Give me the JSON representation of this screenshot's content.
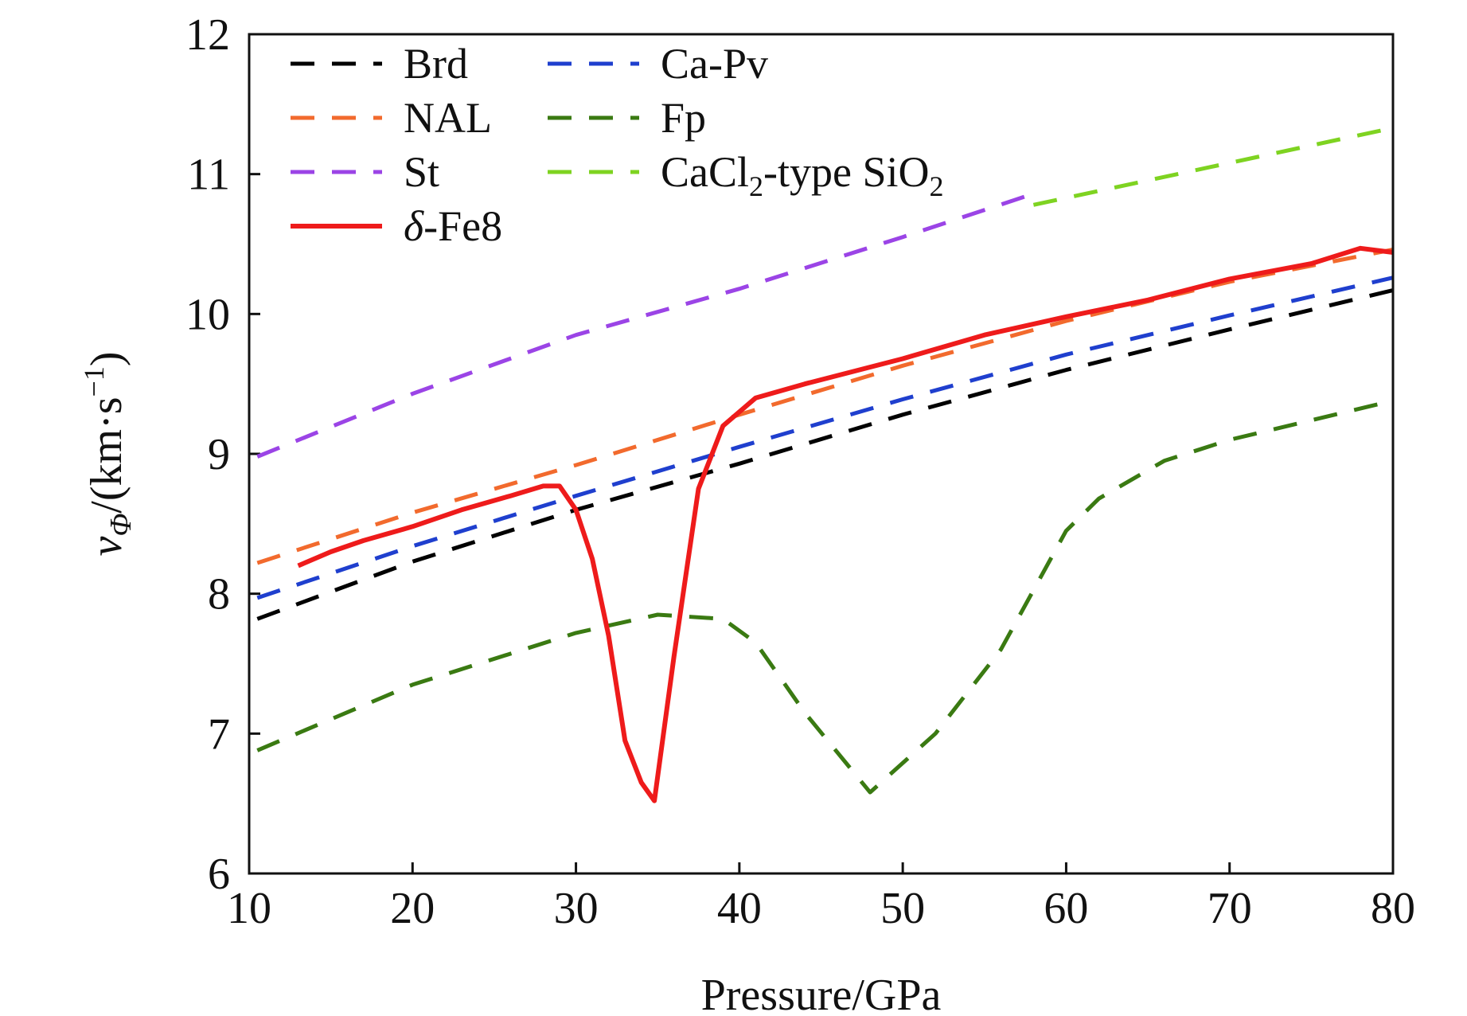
{
  "chart_data": {
    "type": "line",
    "title": "",
    "xlabel": "Pressure/GPa",
    "ylabel": {
      "symbol": "v",
      "subscript": "Φ",
      "units_prefix": "/(km·s",
      "units_exp": "−1",
      "units_suffix": ")"
    },
    "xlim": [
      10,
      80
    ],
    "ylim": [
      6,
      12
    ],
    "xticks": [
      10,
      20,
      30,
      40,
      50,
      60,
      70,
      80
    ],
    "yticks": [
      6,
      7,
      8,
      9,
      10,
      11,
      12
    ],
    "grid": false,
    "legend_position": "top-left",
    "series": [
      {
        "id": "brd",
        "name": "Brd",
        "color": "#000000",
        "dash": true,
        "x": [
          10.5,
          20,
          30,
          40,
          50,
          60,
          70,
          80
        ],
        "y": [
          7.82,
          8.23,
          8.6,
          8.93,
          9.28,
          9.6,
          9.89,
          10.17
        ]
      },
      {
        "id": "capv",
        "name": "Ca-Pv",
        "color": "#1f3fce",
        "dash": true,
        "x": [
          10.5,
          20,
          30,
          40,
          50,
          60,
          70,
          80
        ],
        "y": [
          7.97,
          8.34,
          8.7,
          9.05,
          9.39,
          9.71,
          9.99,
          10.26
        ]
      },
      {
        "id": "nal",
        "name": "NAL",
        "color": "#f26a2d",
        "dash": true,
        "x": [
          10.5,
          20,
          30,
          40,
          50,
          60,
          70,
          80
        ],
        "y": [
          8.22,
          8.58,
          8.92,
          9.28,
          9.63,
          9.95,
          10.23,
          10.46
        ]
      },
      {
        "id": "fp",
        "name": "Fp",
        "color": "#3a7a12",
        "dash": true,
        "x": [
          10.5,
          20,
          30,
          35,
          39,
          41,
          44,
          48,
          52,
          56,
          60,
          62,
          66,
          70,
          80
        ],
        "y": [
          6.88,
          7.35,
          7.72,
          7.85,
          7.82,
          7.65,
          7.15,
          6.58,
          7.0,
          7.6,
          8.45,
          8.68,
          8.95,
          9.1,
          9.38
        ]
      },
      {
        "id": "st",
        "name": "St",
        "color": "#9b44e6",
        "dash": true,
        "x": [
          10.5,
          20,
          30,
          40,
          50,
          58
        ],
        "y": [
          8.98,
          9.43,
          9.85,
          10.18,
          10.55,
          10.86
        ]
      },
      {
        "id": "cacl2",
        "name": "CaCl",
        "name_sub": "2",
        "name_suffix": "-type SiO",
        "name_sub2": "2",
        "color": "#7ed321",
        "dash": true,
        "x": [
          58,
          70,
          80
        ],
        "y": [
          10.78,
          11.08,
          11.33
        ]
      },
      {
        "id": "fe8",
        "name_prefix": "δ",
        "name": "-Fe8",
        "color": "#ee1b1b",
        "dash": false,
        "x": [
          13,
          15,
          17,
          20,
          23,
          26,
          28,
          29,
          30,
          31,
          32,
          33,
          34,
          34.8,
          36,
          37.5,
          39,
          41,
          44,
          50,
          55,
          60,
          65,
          70,
          75,
          78,
          80
        ],
        "y": [
          8.2,
          8.3,
          8.38,
          8.48,
          8.6,
          8.7,
          8.77,
          8.77,
          8.6,
          8.25,
          7.7,
          6.95,
          6.65,
          6.52,
          7.55,
          8.75,
          9.2,
          9.4,
          9.5,
          9.68,
          9.85,
          9.98,
          10.1,
          10.25,
          10.36,
          10.47,
          10.44
        ]
      }
    ]
  }
}
